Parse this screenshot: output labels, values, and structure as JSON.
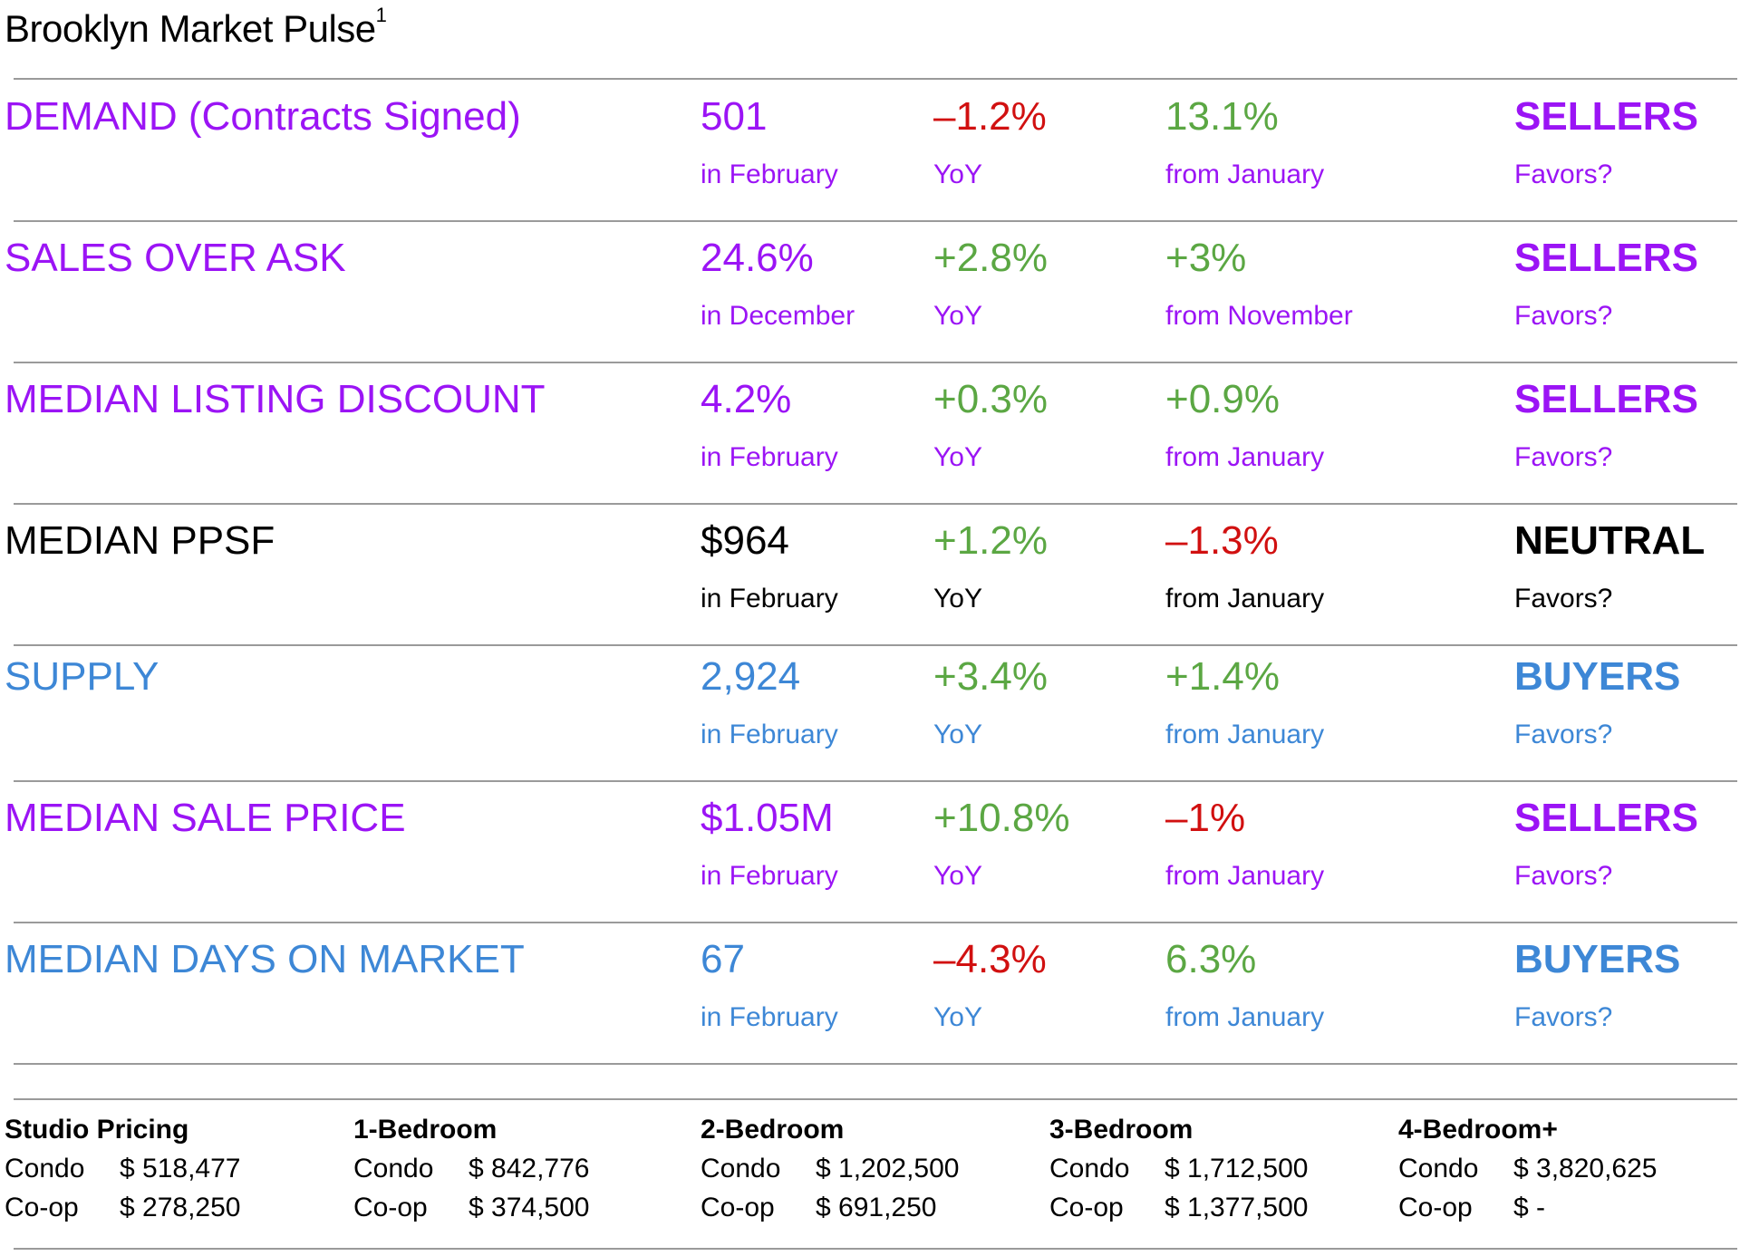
{
  "title": "Brooklyn Market Pulse",
  "title_sup": "1",
  "colors": {
    "purple": "#9b14f5",
    "black": "#000000",
    "blue": "#3d87d6",
    "green": "#5ba743",
    "red": "#d11010",
    "rule": "#9a9a9a"
  },
  "metrics": [
    {
      "name": "DEMAND (Contracts Signed)",
      "color": "#9b14f5",
      "value": "501",
      "value_sub": "in February",
      "yoy": "–1.2%",
      "yoy_color": "#d11010",
      "yoy_sub": "YoY",
      "mom": "13.1%",
      "mom_color": "#5ba743",
      "mom_sub": "from January",
      "favors": "SELLERS",
      "favors_sub": "Favors?"
    },
    {
      "name": "SALES OVER ASK",
      "color": "#9b14f5",
      "value": "24.6%",
      "value_sub": "in December",
      "yoy": "+2.8%",
      "yoy_color": "#5ba743",
      "yoy_sub": "YoY",
      "mom": "+3%",
      "mom_color": "#5ba743",
      "mom_sub": "from November",
      "favors": "SELLERS",
      "favors_sub": "Favors?"
    },
    {
      "name": "MEDIAN LISTING DISCOUNT",
      "color": "#9b14f5",
      "value": "4.2%",
      "value_sub": "in February",
      "yoy": "+0.3%",
      "yoy_color": "#5ba743",
      "yoy_sub": "YoY",
      "mom": "+0.9%",
      "mom_color": "#5ba743",
      "mom_sub": "from January",
      "favors": "SELLERS",
      "favors_sub": "Favors?"
    },
    {
      "name": "MEDIAN PPSF",
      "color": "#000000",
      "value": "$964",
      "value_sub": "in February",
      "yoy": "+1.2%",
      "yoy_color": "#5ba743",
      "yoy_sub": "YoY",
      "mom": "–1.3%",
      "mom_color": "#d11010",
      "mom_sub": "from January",
      "favors": "NEUTRAL",
      "favors_sub": "Favors?"
    },
    {
      "name": "SUPPLY",
      "color": "#3d87d6",
      "value": "2,924",
      "value_sub": "in February",
      "yoy": "+3.4%",
      "yoy_color": "#5ba743",
      "yoy_sub": "YoY",
      "mom": "+1.4%",
      "mom_color": "#5ba743",
      "mom_sub": "from January",
      "favors": "BUYERS",
      "favors_sub": "Favors?"
    },
    {
      "name": "MEDIAN SALE PRICE",
      "color": "#9b14f5",
      "value": "$1.05M",
      "value_sub": "in February",
      "yoy": "+10.8%",
      "yoy_color": "#5ba743",
      "yoy_sub": "YoY",
      "mom": "–1%",
      "mom_color": "#d11010",
      "mom_sub": "from January",
      "favors": "SELLERS",
      "favors_sub": "Favors?"
    },
    {
      "name": "MEDIAN DAYS ON MARKET",
      "color": "#3d87d6",
      "value": "67",
      "value_sub": "in February",
      "yoy": "–4.3%",
      "yoy_color": "#d11010",
      "yoy_sub": "YoY",
      "mom": "6.3%",
      "mom_color": "#5ba743",
      "mom_sub": "from January",
      "favors": "BUYERS",
      "favors_sub": "Favors?"
    }
  ],
  "pricing": [
    {
      "header": "Studio Pricing",
      "condo_label": "Condo",
      "condo": "$ 518,477",
      "coop_label": "Co-op",
      "coop": "$ 278,250"
    },
    {
      "header": "1-Bedroom",
      "condo_label": "Condo",
      "condo": "$ 842,776",
      "coop_label": "Co-op",
      "coop": "$ 374,500"
    },
    {
      "header": "2-Bedroom",
      "condo_label": "Condo",
      "condo": "$ 1,202,500",
      "coop_label": "Co-op",
      "coop": "$ 691,250"
    },
    {
      "header": "3-Bedroom",
      "condo_label": "Condo",
      "condo": "$ 1,712,500",
      "coop_label": "Co-op",
      "coop": "$ 1,377,500"
    },
    {
      "header": "4-Bedroom+",
      "condo_label": "Condo",
      "condo": "$ 3,820,625",
      "coop_label": "Co-op",
      "coop": "$ -"
    }
  ]
}
